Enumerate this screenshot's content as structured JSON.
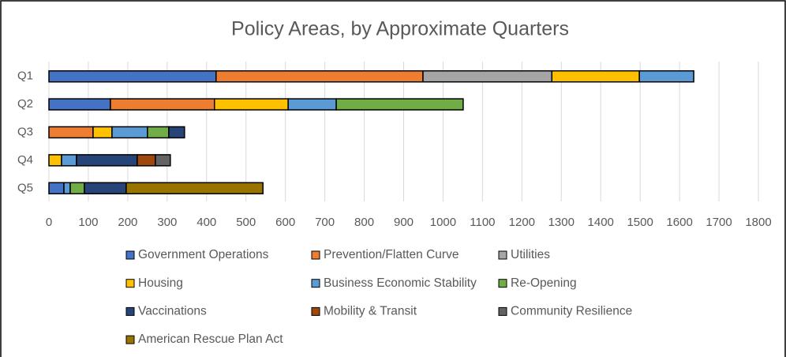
{
  "chart_data": {
    "type": "stacked-barh",
    "title": "Policy Areas, by Approximate Quarters",
    "categories": [
      "Q1",
      "Q2",
      "Q3",
      "Q4",
      "Q5"
    ],
    "series": [
      {
        "name": "Government Operations",
        "color": "#4472c4",
        "values": [
          424,
          156,
          null,
          null,
          38
        ]
      },
      {
        "name": "Prevention/Flatten Curve",
        "color": "#ed7d31",
        "values": [
          525,
          264,
          112,
          null,
          null
        ]
      },
      {
        "name": "Utilities",
        "color": "#a5a5a5",
        "values": [
          327,
          null,
          null,
          null,
          null
        ]
      },
      {
        "name": "Housing",
        "color": "#ffc000",
        "values": [
          222,
          187,
          48,
          32,
          null
        ]
      },
      {
        "name": "Business Economic Stability",
        "color": "#5b9bd5",
        "values": [
          138,
          122,
          90,
          38,
          16
        ]
      },
      {
        "name": "Re-Opening",
        "color": "#70ad47",
        "values": [
          null,
          322,
          54,
          null,
          36
        ]
      },
      {
        "name": "Vaccinations",
        "color": "#264478",
        "values": [
          null,
          null,
          40,
          154,
          106
        ]
      },
      {
        "name": "Mobility & Transit",
        "color": "#9e480e",
        "values": [
          null,
          null,
          null,
          46,
          null
        ]
      },
      {
        "name": "Community Resilience",
        "color": "#636363",
        "values": [
          null,
          null,
          null,
          38,
          null
        ]
      },
      {
        "name": "American Rescue Plan Act",
        "color": "#997300",
        "values": [
          null,
          null,
          null,
          null,
          347
        ]
      }
    ],
    "xlim": [
      0,
      1800
    ],
    "xticks": [
      0,
      100,
      200,
      300,
      400,
      500,
      600,
      700,
      800,
      900,
      1000,
      1100,
      1200,
      1300,
      1400,
      1500,
      1600,
      1700,
      1800
    ],
    "grid": true
  }
}
